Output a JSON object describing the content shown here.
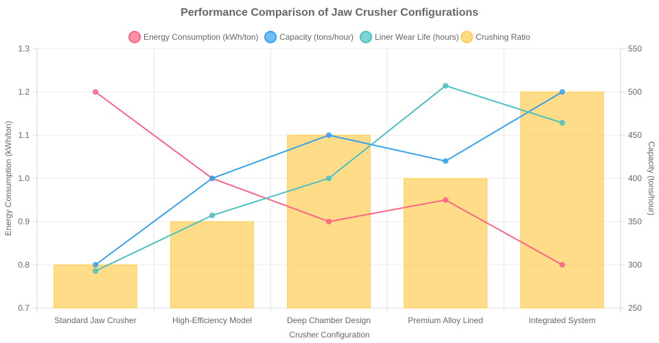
{
  "chart_data": {
    "type": "bar",
    "title": "Performance Comparison of Jaw Crusher Configurations",
    "xlabel": "Crusher Configuration",
    "ylabel": "Energy Consumption (kWh/ton)",
    "y2label": "Capacity (tons/hour)",
    "categories": [
      "Standard Jaw Crusher",
      "High-Efficiency Model",
      "Deep Chamber Design",
      "Premium Alloy Lined",
      "Integrated System"
    ],
    "ylim": [
      0.7,
      1.3
    ],
    "yticks": [
      "0.7",
      "0.8",
      "0.9",
      "1.0",
      "1.1",
      "1.2",
      "1.3"
    ],
    "y2lim": [
      250,
      550
    ],
    "y2ticks": [
      "250",
      "300",
      "350",
      "400",
      "450",
      "500",
      "550"
    ],
    "grid": true,
    "legend_position": "top",
    "series": [
      {
        "name": "Energy Consumption (kWh/ton)",
        "type": "line",
        "axis": "left",
        "color": "#ff6384",
        "values": [
          1.2,
          1.0,
          0.9,
          0.95,
          0.8
        ]
      },
      {
        "name": "Capacity (tons/hour)",
        "type": "line",
        "axis": "right",
        "color": "#36a2eb",
        "values": [
          300,
          400,
          450,
          420,
          500
        ]
      },
      {
        "name": "Liner Wear Life (hours)",
        "type": "line",
        "axis": "hidden",
        "range": [
          1100,
          2500
        ],
        "color": "#4bc0c0",
        "values": [
          1300,
          1600,
          1800,
          2300,
          2100
        ]
      },
      {
        "name": "Crushing Ratio",
        "type": "bar",
        "axis": "hidden",
        "range": [
          3,
          9
        ],
        "color": "#ffcd56",
        "values": [
          4,
          5,
          7,
          6,
          8
        ]
      }
    ]
  }
}
